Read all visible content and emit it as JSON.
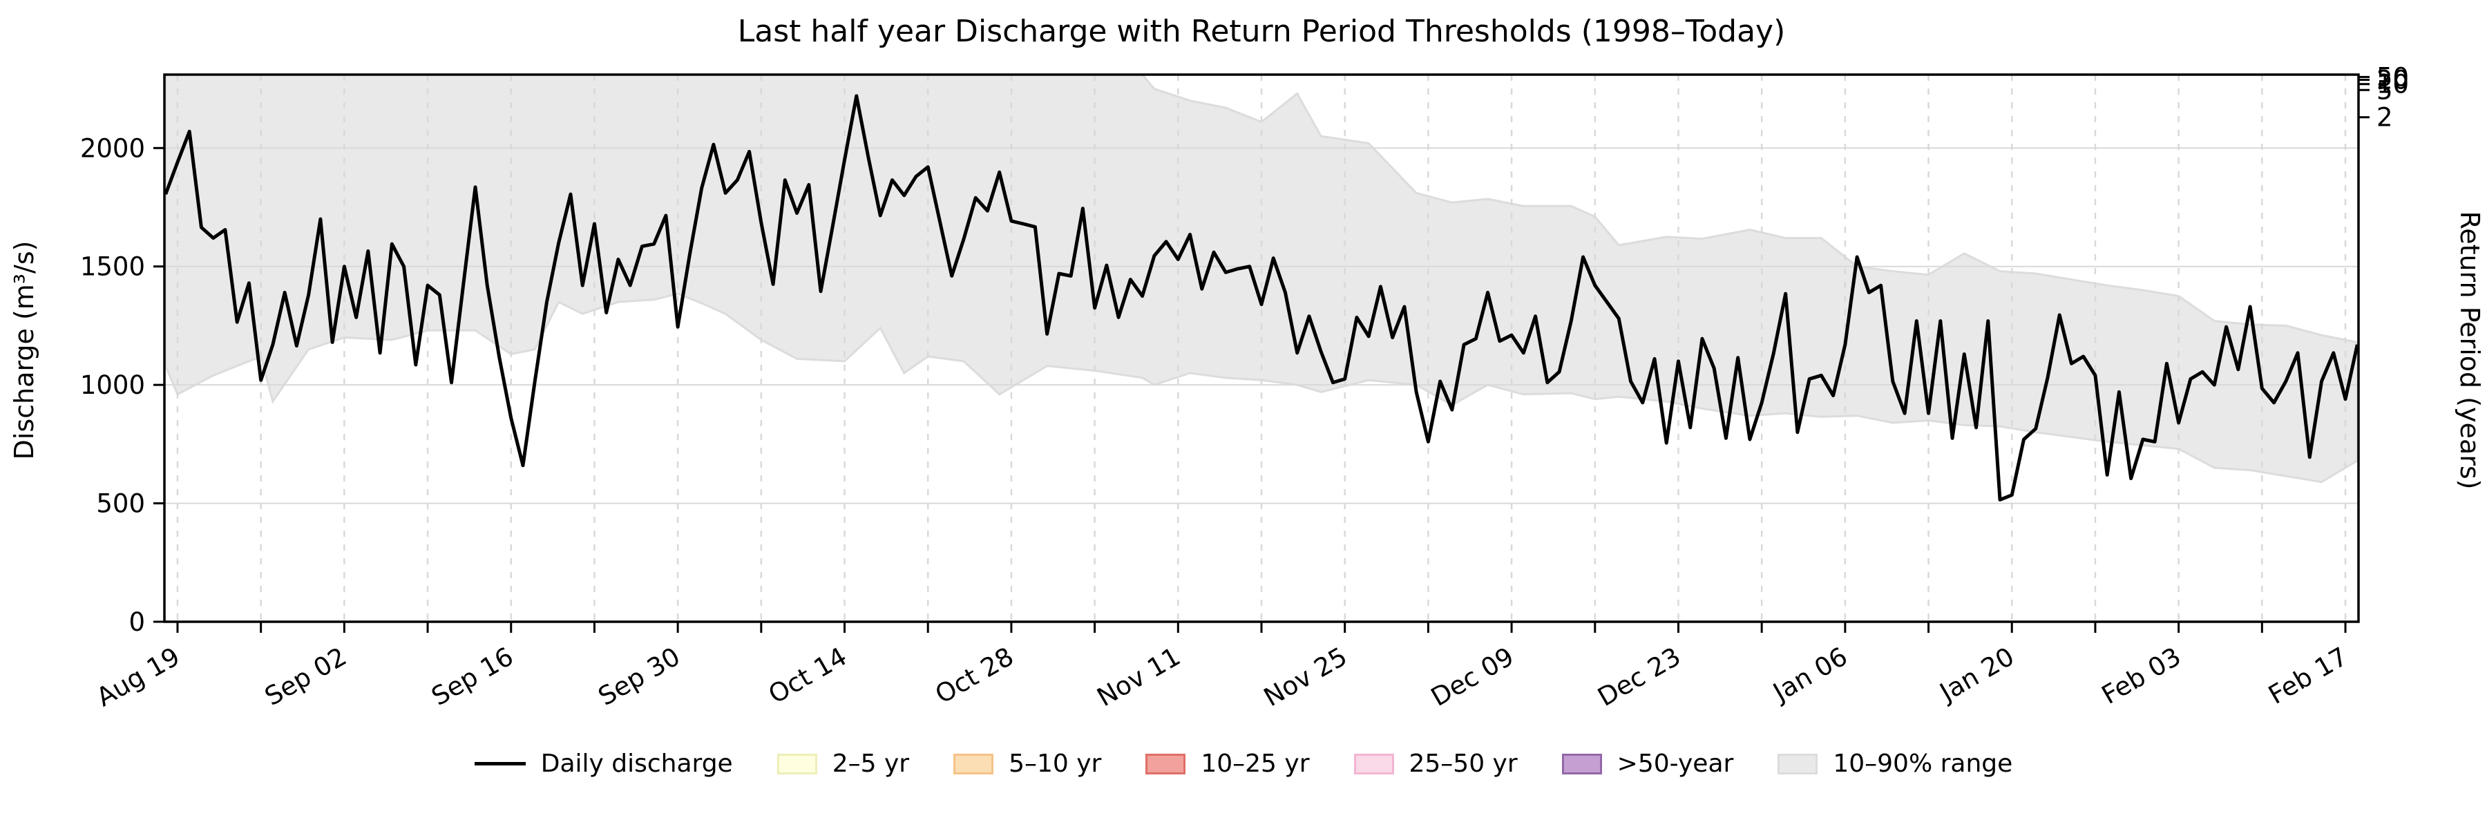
{
  "page": {
    "background": "#ffffff"
  },
  "chart_data": {
    "type": "line",
    "title": "Last half year Discharge with Return Period Thresholds (1998–Today)",
    "ylabel_left": "Discharge (m³/s)",
    "ylabel_right": "Return Period (years)",
    "ylim": [
      0,
      2310
    ],
    "grid": true,
    "legend_position": "bottom",
    "x_axis": {
      "unit": "day",
      "start_label": "Aug 18",
      "end_label": "Feb 18",
      "major_ticks": [
        {
          "day": 1,
          "label": "Aug 19"
        },
        {
          "day": 15,
          "label": "Sep 02"
        },
        {
          "day": 29,
          "label": "Sep 16"
        },
        {
          "day": 43,
          "label": "Sep 30"
        },
        {
          "day": 57,
          "label": "Oct 14"
        },
        {
          "day": 71,
          "label": "Oct 28"
        },
        {
          "day": 85,
          "label": "Nov 11"
        },
        {
          "day": 99,
          "label": "Nov 25"
        },
        {
          "day": 113,
          "label": "Dec 09"
        },
        {
          "day": 127,
          "label": "Dec 23"
        },
        {
          "day": 141,
          "label": "Jan 06"
        },
        {
          "day": 155,
          "label": "Jan 20"
        },
        {
          "day": 169,
          "label": "Feb 03"
        },
        {
          "day": 183,
          "label": "Feb 17"
        }
      ],
      "minor_tick_days": [
        8,
        22,
        36,
        50,
        64,
        78,
        92,
        106,
        120,
        134,
        148,
        162,
        176
      ]
    },
    "left_ticks": [
      0,
      500,
      1000,
      1500,
      2000
    ],
    "right_axis": {
      "ticks": [
        {
          "label": "2",
          "discharge": 2130
        },
        {
          "label": "5",
          "discharge": 2245
        },
        {
          "label": "10",
          "discharge": 2270
        },
        {
          "label": "20",
          "discharge": 2288
        },
        {
          "label": "50",
          "discharge": 2300
        }
      ]
    },
    "series": [
      {
        "name": "Daily discharge",
        "color": "#000000",
        "start_date": "Aug 18",
        "values": [
          1805,
          1940,
          2070,
          1665,
          1620,
          1655,
          1265,
          1430,
          1020,
          1170,
          1390,
          1165,
          1380,
          1700,
          1180,
          1500,
          1285,
          1565,
          1135,
          1595,
          1500,
          1085,
          1420,
          1380,
          1010,
          1425,
          1835,
          1420,
          1120,
          860,
          660,
          1015,
          1350,
          1600,
          1805,
          1420,
          1680,
          1305,
          1530,
          1420,
          1585,
          1595,
          1715,
          1245,
          1550,
          1830,
          2015,
          1810,
          1865,
          1985,
          1685,
          1425,
          1865,
          1725,
          1845,
          1395,
          1670,
          1950,
          2220,
          1960,
          1715,
          1865,
          1800,
          1880,
          1920,
          1690,
          1460,
          1615,
          1790,
          1735,
          1898,
          1692,
          1680,
          1667,
          1215,
          1470,
          1460,
          1745,
          1325,
          1505,
          1285,
          1445,
          1375,
          1545,
          1605,
          1530,
          1635,
          1405,
          1560,
          1475,
          1490,
          1500,
          1340,
          1535,
          1390,
          1135,
          1290,
          1140,
          1010,
          1025,
          1285,
          1205,
          1415,
          1200,
          1330,
          970,
          760,
          1015,
          895,
          1170,
          1195,
          1390,
          1185,
          1210,
          1135,
          1290,
          1010,
          1055,
          1270,
          1540,
          1420,
          1350,
          1280,
          1015,
          925,
          1110,
          755,
          1100,
          820,
          1195,
          1070,
          775,
          1115,
          770,
          925,
          1135,
          1385,
          800,
          1025,
          1040,
          955,
          1170,
          1540,
          1390,
          1420,
          1015,
          880,
          1270,
          880,
          1270,
          775,
          1130,
          820,
          1270,
          515,
          535,
          770,
          815,
          1030,
          1295,
          1090,
          1120,
          1040,
          620,
          970,
          605,
          770,
          760,
          1090,
          840,
          1025,
          1055,
          1000,
          1245,
          1065,
          1330,
          985,
          925,
          1015,
          1135,
          695,
          1015,
          1135,
          940,
          1170
        ]
      }
    ],
    "band": {
      "name": "10–90% range",
      "fill": "#e9e9e9",
      "edge": "#dcdcdc",
      "anchors": [
        [
          0,
          1080,
          2310
        ],
        [
          1,
          960,
          2310
        ],
        [
          4,
          1040,
          2310
        ],
        [
          8,
          1120,
          2310
        ],
        [
          9,
          930,
          2310
        ],
        [
          12,
          1150,
          2310
        ],
        [
          15,
          1200,
          2310
        ],
        [
          19,
          1190,
          2310
        ],
        [
          22,
          1230,
          2310
        ],
        [
          26,
          1230,
          2310
        ],
        [
          29,
          1130,
          2310
        ],
        [
          31,
          1150,
          2310
        ],
        [
          33,
          1350,
          2310
        ],
        [
          35,
          1300,
          2310
        ],
        [
          38,
          1350,
          2310
        ],
        [
          41,
          1360,
          2310
        ],
        [
          43,
          1385,
          2310
        ],
        [
          45,
          1345,
          2310
        ],
        [
          47,
          1300,
          2310
        ],
        [
          50,
          1190,
          2310
        ],
        [
          53,
          1110,
          2310
        ],
        [
          57,
          1100,
          2310
        ],
        [
          60,
          1240,
          2310
        ],
        [
          62,
          1050,
          2310
        ],
        [
          64,
          1120,
          2310
        ],
        [
          67,
          1100,
          2310
        ],
        [
          70,
          960,
          2310
        ],
        [
          74,
          1080,
          2310
        ],
        [
          78,
          1060,
          2310
        ],
        [
          82,
          1030,
          2310
        ],
        [
          83,
          1000,
          2250
        ],
        [
          86,
          1050,
          2200
        ],
        [
          89,
          1030,
          2170
        ],
        [
          92,
          1020,
          2110
        ],
        [
          95,
          1000,
          2230
        ],
        [
          97,
          970,
          2050
        ],
        [
          101,
          1020,
          2020
        ],
        [
          105,
          1000,
          1810
        ],
        [
          108,
          915,
          1770
        ],
        [
          111,
          1000,
          1785
        ],
        [
          114,
          960,
          1755
        ],
        [
          118,
          965,
          1755
        ],
        [
          120,
          940,
          1710
        ],
        [
          122,
          950,
          1590
        ],
        [
          126,
          930,
          1625
        ],
        [
          129,
          900,
          1617
        ],
        [
          133,
          870,
          1655
        ],
        [
          136,
          880,
          1620
        ],
        [
          139,
          865,
          1620
        ],
        [
          142,
          870,
          1500
        ],
        [
          145,
          840,
          1480
        ],
        [
          148,
          850,
          1465
        ],
        [
          151,
          830,
          1555
        ],
        [
          154,
          825,
          1480
        ],
        [
          157,
          800,
          1470
        ],
        [
          160,
          780,
          1445
        ],
        [
          163,
          760,
          1420
        ],
        [
          166,
          745,
          1400
        ],
        [
          169,
          730,
          1375
        ],
        [
          172,
          650,
          1270
        ],
        [
          175,
          640,
          1255
        ],
        [
          178,
          615,
          1250
        ],
        [
          181,
          590,
          1210
        ],
        [
          184,
          680,
          1180
        ]
      ]
    },
    "legend": [
      {
        "label": "Daily discharge",
        "type": "line",
        "color": "#000000"
      },
      {
        "label": "2–5 yr",
        "type": "patch",
        "fill": "#ffffe0",
        "edge": "#eeeeb8"
      },
      {
        "label": "5–10 yr",
        "type": "patch",
        "fill": "#fcdeb5",
        "edge": "#f6c286"
      },
      {
        "label": "10–25 yr",
        "type": "patch",
        "fill": "#f1a29c",
        "edge": "#df6e66"
      },
      {
        "label": "25–50 yr",
        "type": "patch",
        "fill": "#fad9e8",
        "edge": "#f3b5d2"
      },
      {
        "label": ">50-year",
        "type": "patch",
        "fill": "#c69fd2",
        "edge": "#9268a8"
      },
      {
        "label": "10–90% range",
        "type": "patch",
        "fill": "#e9e9e9",
        "edge": "#dcdcdc"
      }
    ],
    "style": {
      "grid_h_color": "#d9d9d9",
      "grid_v_color": "#d9d9d9",
      "spine_color": "#000000",
      "tick_label_size": 37,
      "line_width": 5
    }
  }
}
